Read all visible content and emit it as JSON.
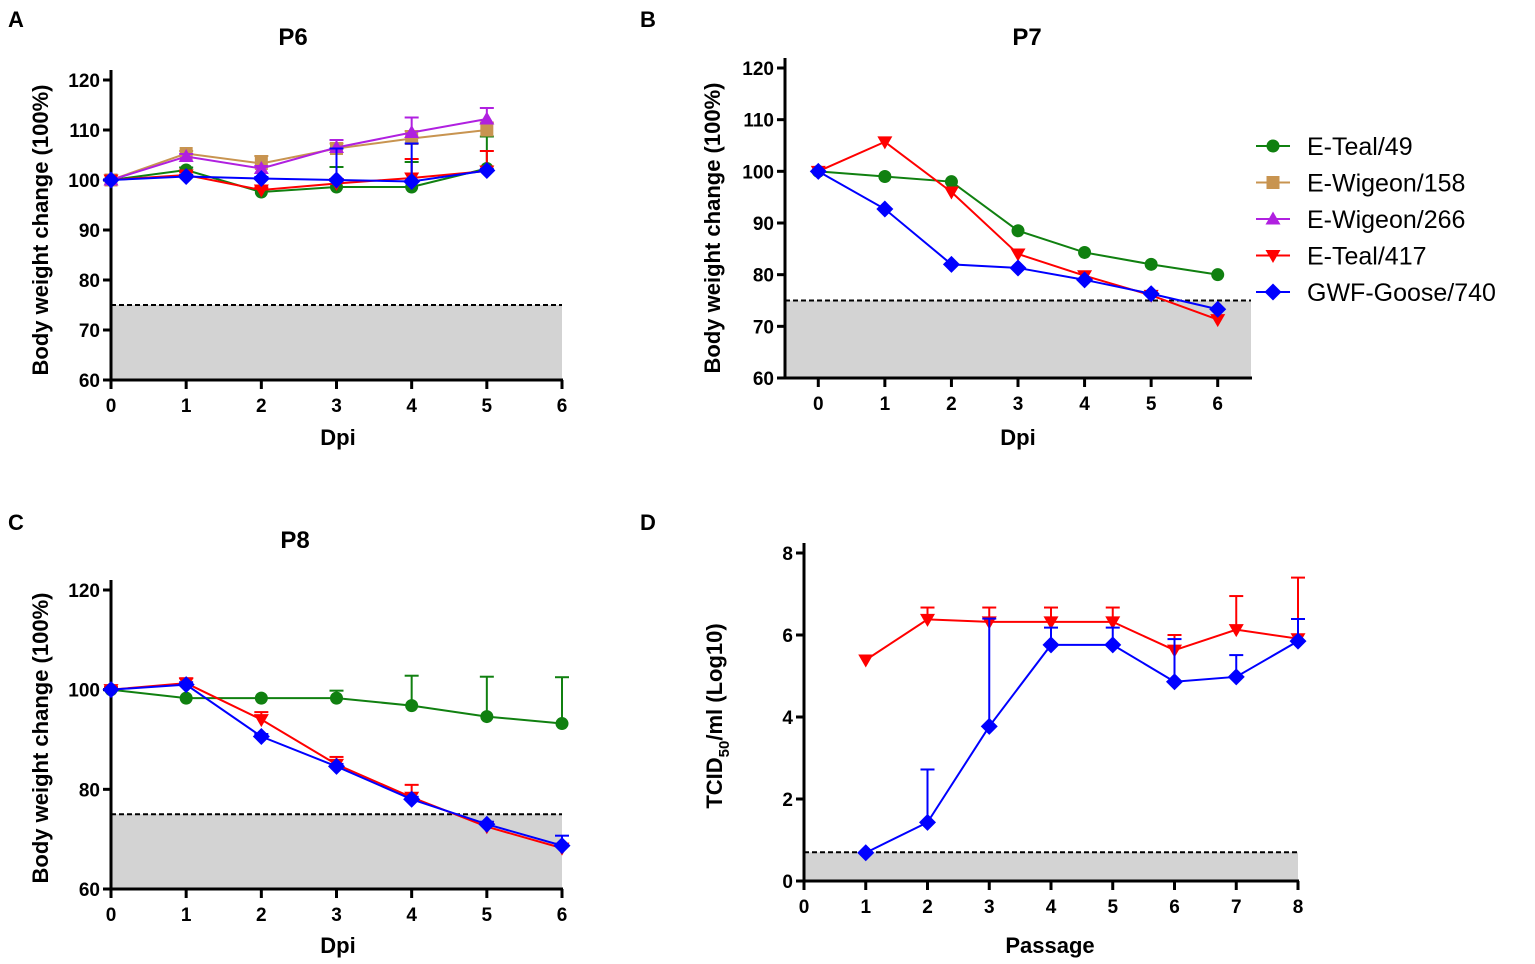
{
  "legend": {
    "placement": "right of panel B",
    "entries": [
      {
        "name": "E-Teal/49",
        "color": "#108010",
        "marker": "circle"
      },
      {
        "name": "E-Wigeon/158",
        "color": "#c89450",
        "marker": "square"
      },
      {
        "name": "E-Wigeon/266",
        "color": "#b020e0",
        "marker": "triangle-up"
      },
      {
        "name": "E-Teal/417",
        "color": "#ff0000",
        "marker": "triangle-down"
      },
      {
        "name": "GWF-Goose/740",
        "color": "#0000ff",
        "marker": "diamond"
      }
    ]
  },
  "chart_data": [
    {
      "panel": "A",
      "type": "line",
      "title": "P6",
      "xlabel": "Dpi",
      "ylabel": "Body weight change (100%)",
      "xlim": [
        0,
        6
      ],
      "ylim": [
        60,
        120
      ],
      "xticks": [
        "0",
        "1",
        "2",
        "3",
        "4",
        "5",
        "6"
      ],
      "yticks": [
        "60",
        "70",
        "80",
        "90",
        "100",
        "110",
        "120"
      ],
      "threshold": 75,
      "grid": false,
      "series": [
        {
          "name": "E-Teal/49",
          "x": [
            0,
            1,
            2,
            3,
            4,
            5
          ],
          "values": [
            100,
            102,
            97.6,
            98.6,
            98.6,
            102.3
          ],
          "error_upper": [
            0,
            0.5,
            0.5,
            4,
            5,
            6.4
          ]
        },
        {
          "name": "E-Wigeon/158",
          "x": [
            0,
            1,
            2,
            3,
            4,
            5
          ],
          "values": [
            100,
            105.3,
            103.3,
            106.3,
            108.3,
            110
          ],
          "error_upper": [
            0,
            0.5,
            1.5,
            1,
            1.5,
            1.5
          ]
        },
        {
          "name": "E-Wigeon/266",
          "x": [
            0,
            1,
            2,
            3,
            4,
            5
          ],
          "values": [
            100,
            104.7,
            102.3,
            106.5,
            109.5,
            112.2
          ],
          "error_upper": [
            0,
            0.5,
            0.5,
            1.5,
            3,
            2.2
          ]
        },
        {
          "name": "E-Teal/417",
          "x": [
            0,
            1,
            2,
            3,
            4,
            5
          ],
          "values": [
            100,
            101,
            98,
            99.3,
            100.4,
            101.8
          ],
          "error_upper": [
            0,
            0.5,
            0.5,
            0.5,
            3.8,
            4
          ]
        },
        {
          "name": "GWF-Goose/740",
          "x": [
            0,
            1,
            2,
            3,
            4,
            5
          ],
          "values": [
            100,
            100.7,
            100.3,
            100,
            99.7,
            101.9
          ],
          "error_upper": [
            0,
            0.3,
            0.3,
            6.3,
            7.6,
            0.3
          ]
        }
      ]
    },
    {
      "panel": "B",
      "type": "line",
      "title": "P7",
      "xlabel": "Dpi",
      "ylabel": "Body weight change (100%)",
      "xlim": [
        -0.5,
        6.5
      ],
      "ylim": [
        60,
        120
      ],
      "xticks": [
        "0",
        "1",
        "2",
        "3",
        "4",
        "5",
        "6"
      ],
      "yticks": [
        "60",
        "70",
        "80",
        "90",
        "100",
        "110",
        "120"
      ],
      "threshold": 75,
      "grid": false,
      "series": [
        {
          "name": "E-Teal/49",
          "x": [
            0,
            1,
            2,
            3,
            4,
            5,
            6
          ],
          "values": [
            100,
            99,
            98,
            88.5,
            84.3,
            82,
            80
          ]
        },
        {
          "name": "E-Teal/417",
          "x": [
            0,
            1,
            2,
            3,
            4,
            5,
            6
          ],
          "values": [
            100,
            105.7,
            96,
            84,
            79.8,
            76,
            71.3
          ]
        },
        {
          "name": "GWF-Goose/740",
          "x": [
            0,
            1,
            2,
            3,
            4,
            5,
            6
          ],
          "values": [
            100,
            92.7,
            82,
            81.3,
            79,
            76.3,
            73.3
          ]
        }
      ]
    },
    {
      "panel": "C",
      "type": "line",
      "title": "P8",
      "xlabel": "Dpi",
      "ylabel": "Body weight change (100%)",
      "xlim": [
        0,
        6
      ],
      "ylim": [
        60,
        120
      ],
      "xticks": [
        "0",
        "1",
        "2",
        "3",
        "4",
        "5",
        "6"
      ],
      "yticks": [
        "60",
        "80",
        "100",
        "120"
      ],
      "threshold": 75,
      "grid": false,
      "series": [
        {
          "name": "E-Teal/49",
          "x": [
            0,
            1,
            2,
            3,
            4,
            5,
            6
          ],
          "values": [
            100,
            98.3,
            98.3,
            98.3,
            96.8,
            94.6,
            93.2
          ],
          "error_upper": [
            0.5,
            0,
            0,
            1.5,
            6,
            8,
            9.3
          ]
        },
        {
          "name": "E-Teal/417",
          "x": [
            0,
            1,
            2,
            3,
            4,
            5,
            6
          ],
          "values": [
            100,
            101.3,
            94,
            85,
            78.4,
            72.5,
            68.2
          ],
          "error_upper": [
            0.5,
            1,
            1.5,
            1.5,
            2.5,
            0.5,
            0.5
          ]
        },
        {
          "name": "GWF-Goose/740",
          "x": [
            0,
            1,
            2,
            3,
            4,
            5,
            6
          ],
          "values": [
            100,
            101,
            90.6,
            84.6,
            78,
            73,
            68.7
          ],
          "error_upper": [
            0,
            0.5,
            0.5,
            0.5,
            0.5,
            0.5,
            2
          ]
        }
      ]
    },
    {
      "panel": "D",
      "type": "line",
      "title": "",
      "xlabel": "Passage",
      "ylabel": "TCID50/ml (Log10)",
      "xlim": [
        0,
        8
      ],
      "ylim": [
        0,
        8
      ],
      "xticks": [
        "0",
        "1",
        "2",
        "3",
        "4",
        "5",
        "6",
        "7",
        "8"
      ],
      "yticks": [
        "0",
        "2",
        "4",
        "6",
        "8"
      ],
      "threshold": 0.7,
      "grid": false,
      "series": [
        {
          "name": "E-Teal/417",
          "x": [
            1,
            2,
            3,
            4,
            5,
            6,
            7,
            8
          ],
          "values": [
            5.39,
            6.38,
            6.32,
            6.32,
            6.32,
            5.63,
            6.13,
            5.91
          ],
          "error_upper": [
            0,
            0.29,
            0.35,
            0.35,
            0.35,
            0.37,
            0.82,
            1.49
          ]
        },
        {
          "name": "GWF-Goose/740",
          "x": [
            1,
            2,
            3,
            4,
            5,
            6,
            7,
            8
          ],
          "values": [
            0.69,
            1.43,
            3.77,
            5.76,
            5.76,
            4.86,
            4.98,
            5.85
          ],
          "error_upper": [
            0,
            1.29,
            2.63,
            0.42,
            0.42,
            1.04,
            0.53,
            0.54
          ]
        }
      ]
    }
  ]
}
